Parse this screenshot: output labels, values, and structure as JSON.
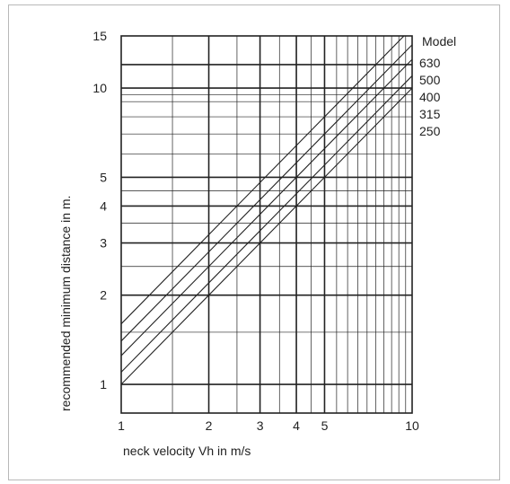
{
  "chart_data": {
    "type": "line",
    "xlabel": "neck velocity Vh in m/s",
    "ylabel": "recommended minimum distance in m.",
    "x_scale": "log",
    "y_scale": "log",
    "xlim": [
      1,
      10
    ],
    "ylim": [
      0.8,
      15
    ],
    "x_ticks": [
      "1",
      "2",
      "3",
      "4",
      "5",
      "10"
    ],
    "y_ticks": [
      "1",
      "2",
      "3",
      "4",
      "5",
      "10",
      "15"
    ],
    "grid": true,
    "legend_title": "Model",
    "legend_position": "right",
    "series": [
      {
        "name": "630",
        "points": [
          [
            1,
            1.6
          ],
          [
            10,
            16
          ]
        ]
      },
      {
        "name": "500",
        "points": [
          [
            1,
            1.4
          ],
          [
            10,
            14
          ]
        ]
      },
      {
        "name": "400",
        "points": [
          [
            1,
            1.25
          ],
          [
            10,
            12.5
          ]
        ]
      },
      {
        "name": "315",
        "points": [
          [
            1,
            1.1
          ],
          [
            10,
            11
          ]
        ]
      },
      {
        "name": "250",
        "points": [
          [
            1,
            1.0
          ],
          [
            10,
            10
          ]
        ]
      }
    ],
    "line_color": "#222222"
  }
}
